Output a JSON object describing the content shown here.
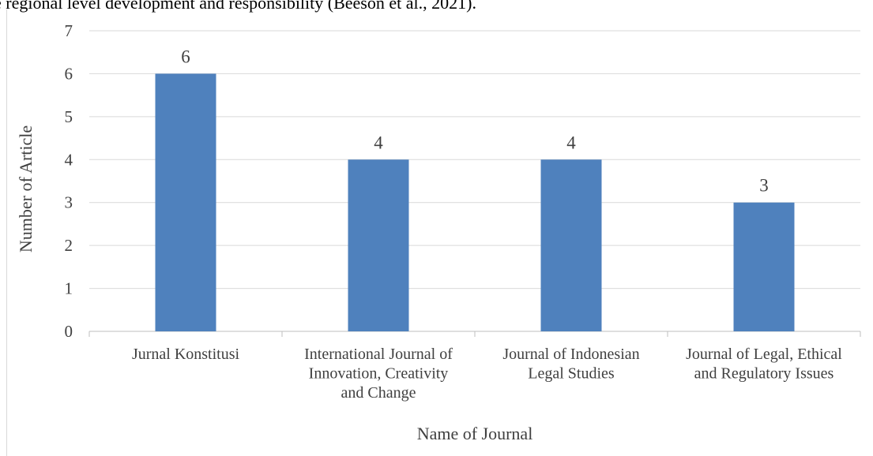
{
  "page": {
    "top_text": "e regional level development and responsibility (Beeson et al., 2021)."
  },
  "chart_data": {
    "type": "bar",
    "title": "",
    "xlabel": "Name of Journal",
    "ylabel": "Number of Article",
    "ylim": [
      0,
      7
    ],
    "yticks": [
      "0",
      "1",
      "2",
      "3",
      "4",
      "5",
      "6",
      "7"
    ],
    "grid": true,
    "legend": "none",
    "categories": [
      [
        "Jurnal Konstitusi"
      ],
      [
        "International Journal of",
        "Innovation, Creativity",
        "and Change"
      ],
      [
        "Journal of Indonesian",
        "Legal Studies"
      ],
      [
        "Journal of Legal, Ethical",
        "and Regulatory Issues"
      ]
    ],
    "values": [
      6,
      4,
      4,
      3
    ],
    "data_labels": [
      "6",
      "4",
      "4",
      "3"
    ],
    "bar_color": "#4f81bd",
    "grid_color": "#d9d9d9",
    "axis_color": "#bfbfbf",
    "text_color": "#404040"
  }
}
